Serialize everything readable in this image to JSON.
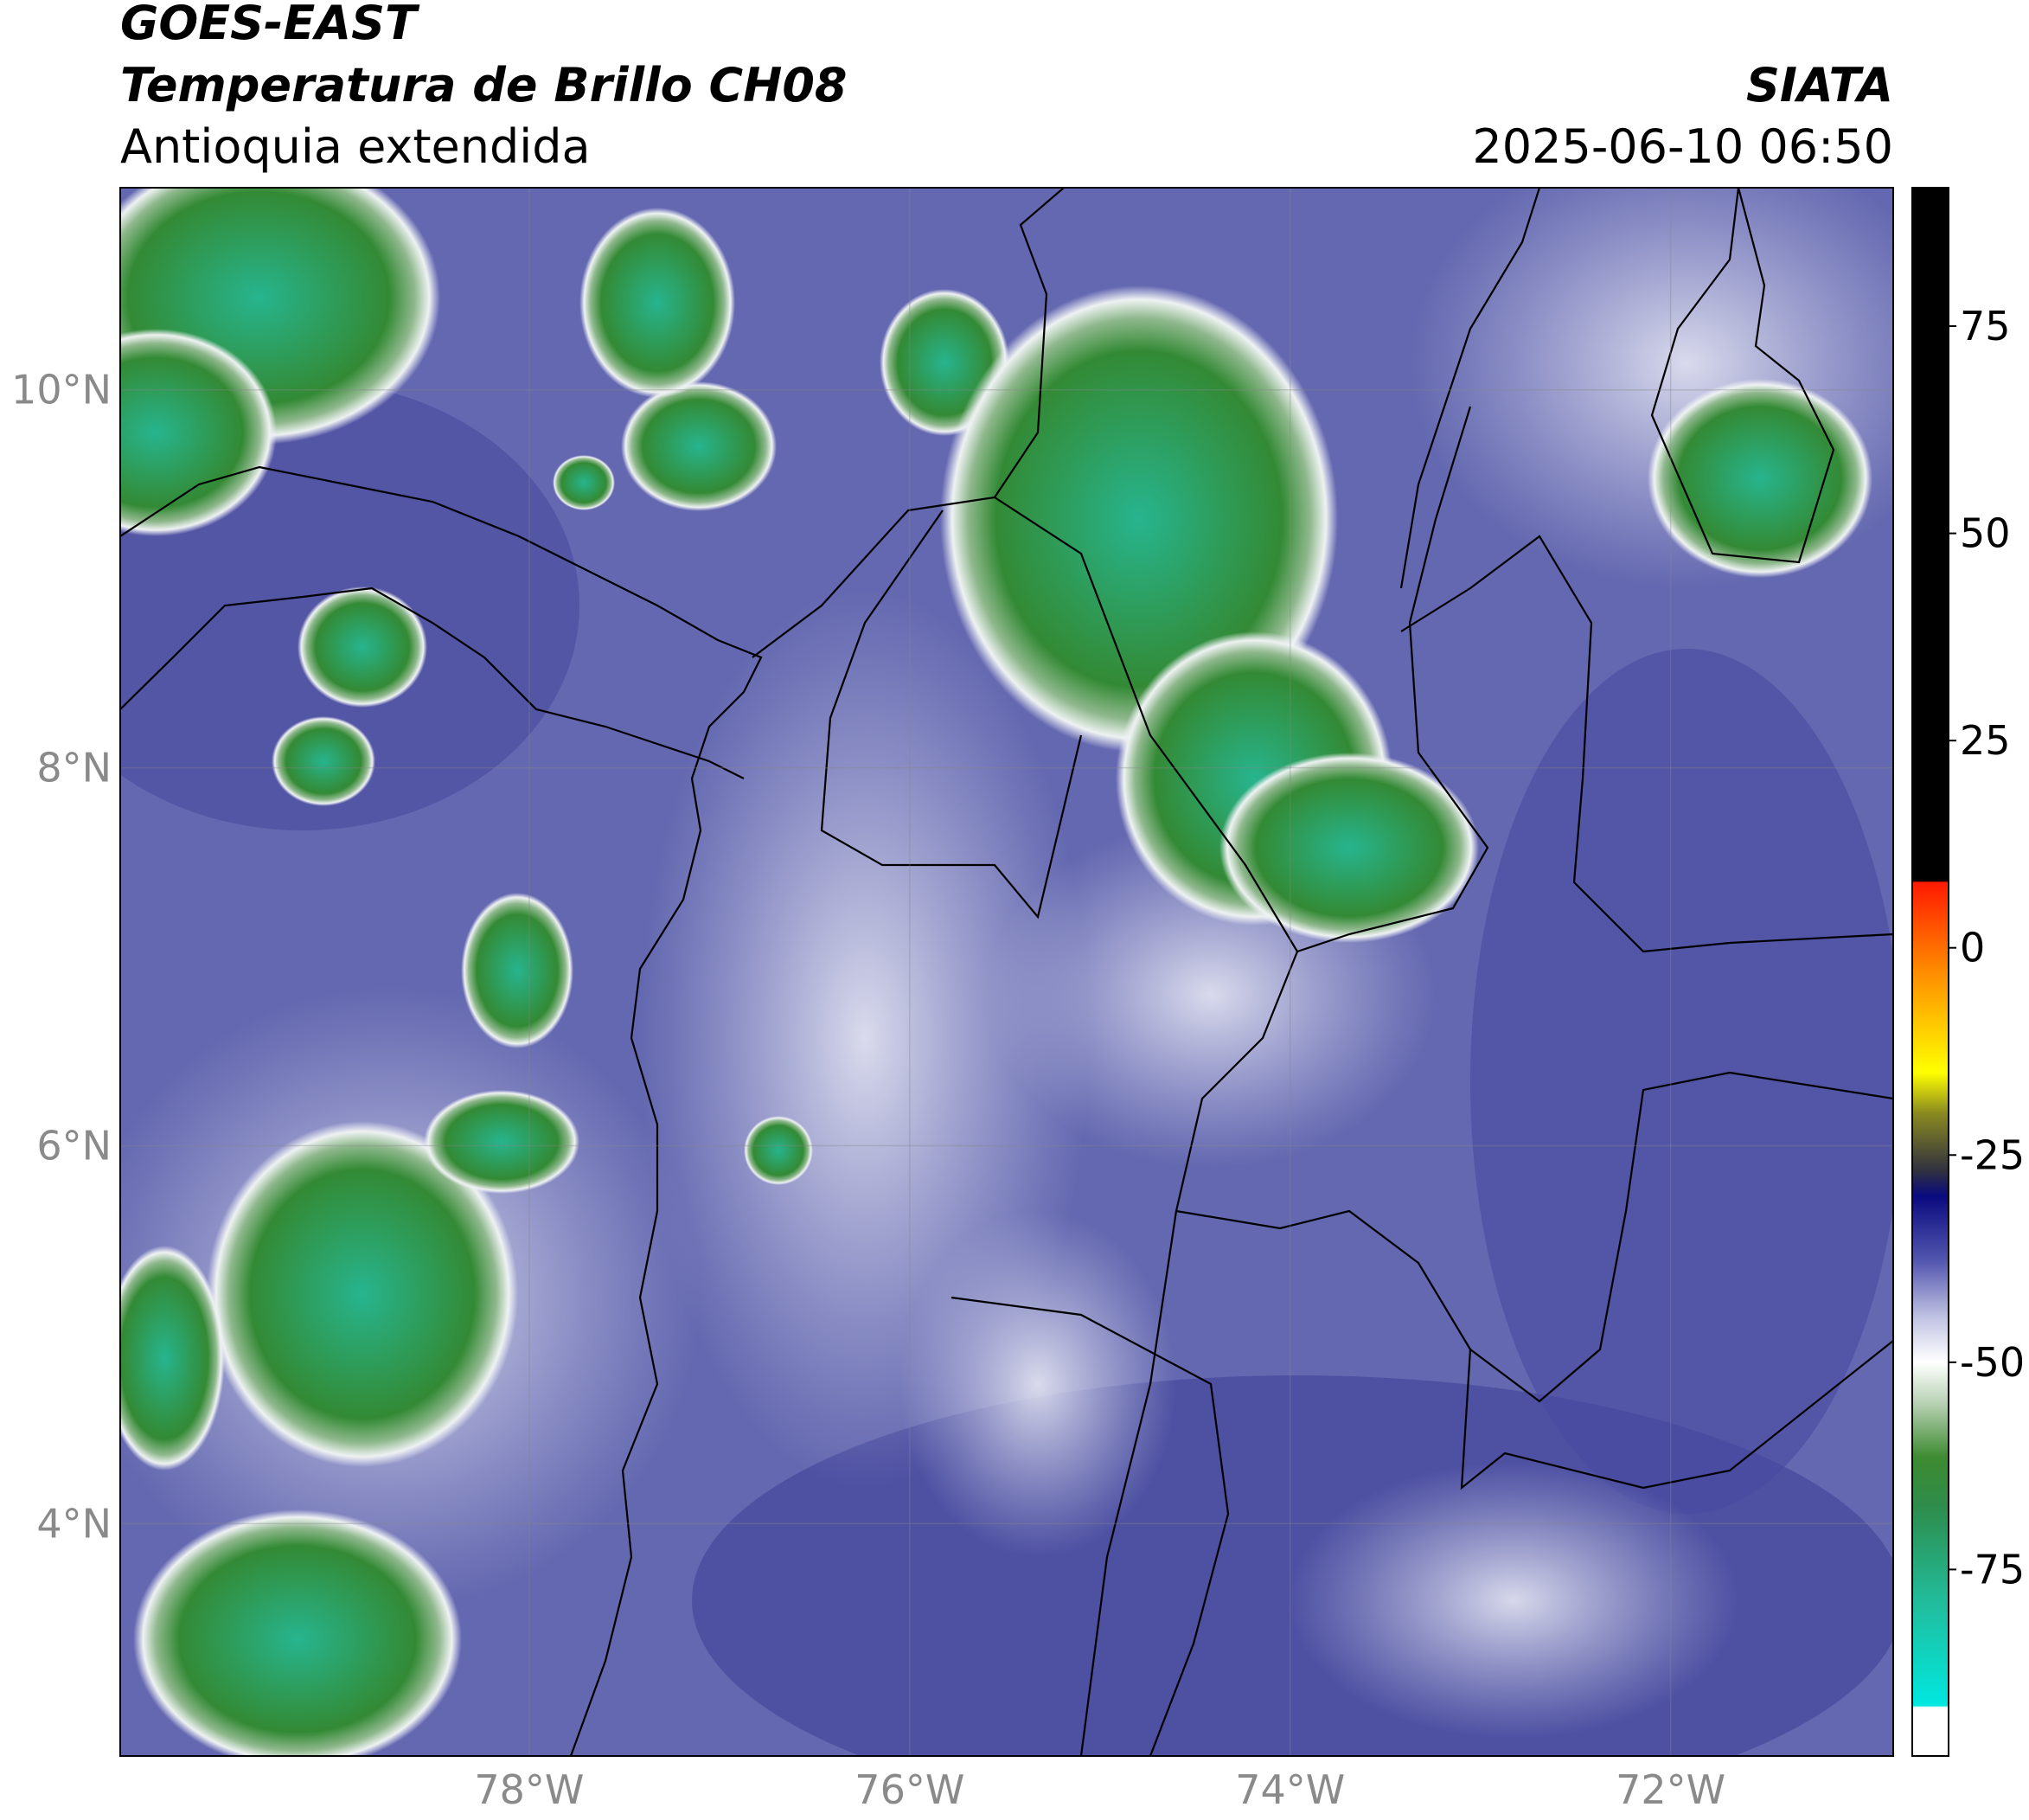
{
  "header": {
    "title": "GOES-EAST",
    "subtitle": "Temperatura de Brillo CH08",
    "region": "Antioquia extendida",
    "source": "SIATA",
    "datetime": "2025-06-10 06:50"
  },
  "map": {
    "xlim": [
      -80.15,
      -70.83
    ],
    "ylim": [
      2.77,
      11.07
    ],
    "grid": true,
    "xticks": [
      {
        "value": -78,
        "label": "78°W"
      },
      {
        "value": -76,
        "label": "76°W"
      },
      {
        "value": -74,
        "label": "74°W"
      },
      {
        "value": -72,
        "label": "72°W"
      }
    ],
    "yticks": [
      {
        "value": 10,
        "label": "10°N"
      },
      {
        "value": 8,
        "label": "8°N"
      },
      {
        "value": 6,
        "label": "6°N"
      },
      {
        "value": 4,
        "label": "4°N"
      }
    ]
  },
  "colorbar": {
    "clim": [
      -97.5,
      91.7
    ],
    "ticks": [
      75,
      50,
      25,
      0,
      -25,
      -50,
      -75
    ]
  }
}
